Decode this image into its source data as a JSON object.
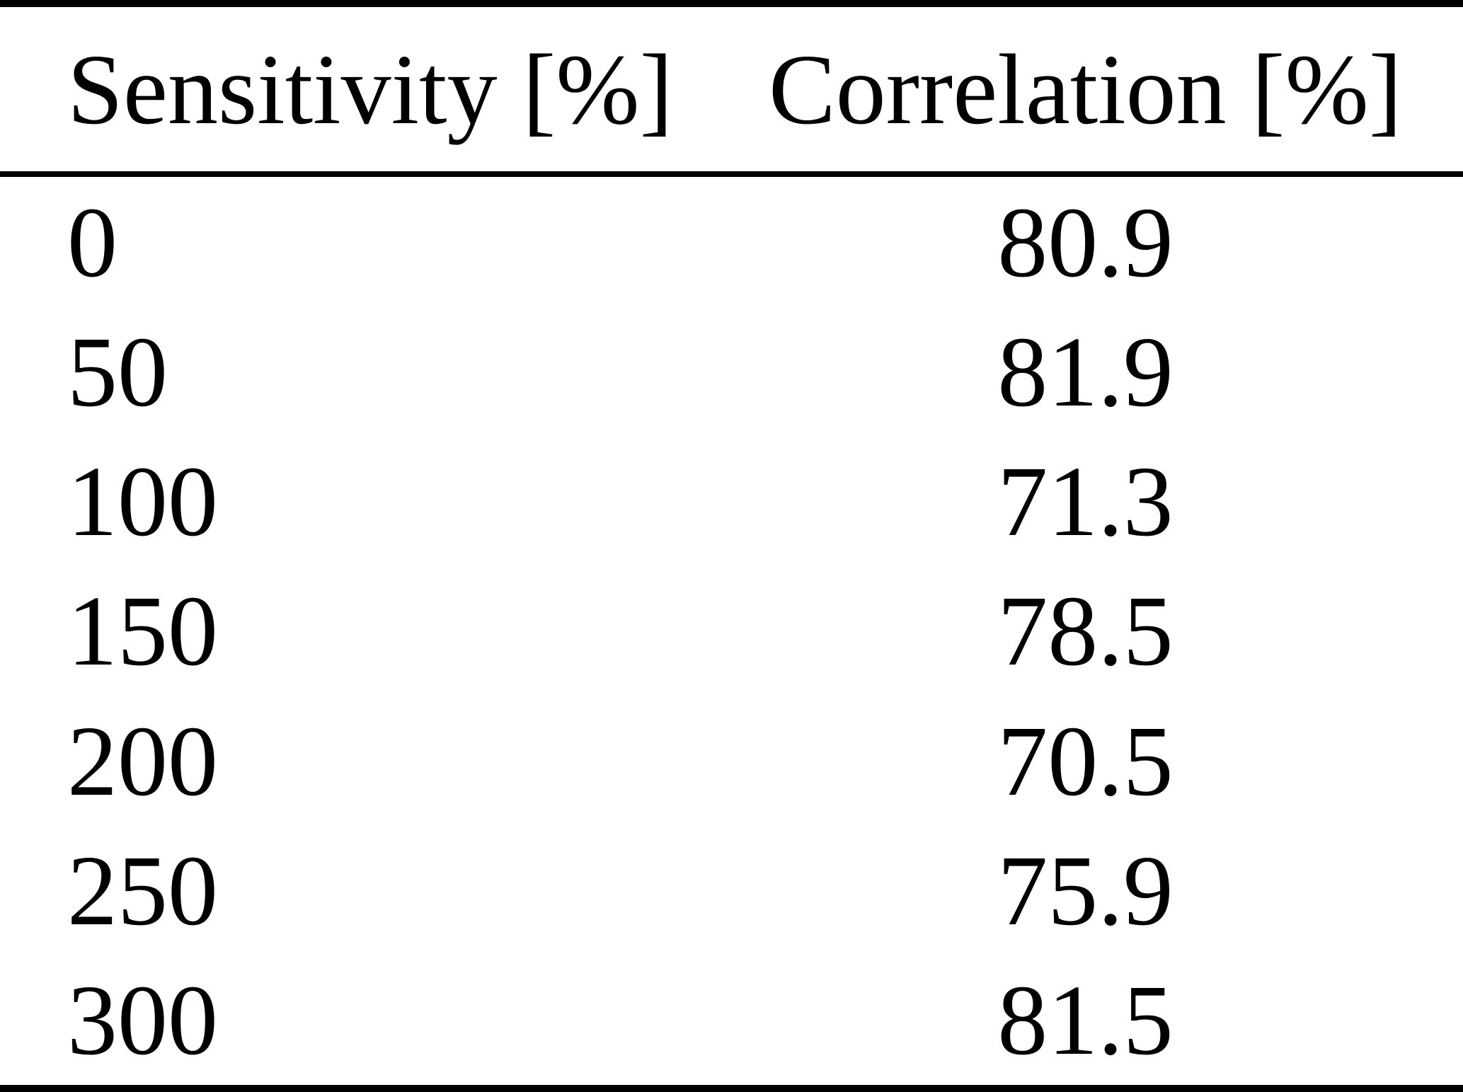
{
  "page": {
    "background_color": "#ffffff",
    "text_color": "#000000",
    "rule_color": "#000000"
  },
  "table": {
    "columns": [
      {
        "id": "sensitivity",
        "label": "Sensitivity [%]"
      },
      {
        "id": "correlation",
        "label": "Correlation [%]"
      }
    ],
    "rows": [
      {
        "sensitivity": "0",
        "correlation": "80.9"
      },
      {
        "sensitivity": "50",
        "correlation": "81.9"
      },
      {
        "sensitivity": "100",
        "correlation": "71.3"
      },
      {
        "sensitivity": "150",
        "correlation": "78.5"
      },
      {
        "sensitivity": "200",
        "correlation": "70.5"
      },
      {
        "sensitivity": "250",
        "correlation": "75.9"
      },
      {
        "sensitivity": "300",
        "correlation": "81.5"
      }
    ]
  },
  "chart_data": {
    "type": "table",
    "columns": [
      "Sensitivity [%]",
      "Correlation [%]"
    ],
    "sensitivity_values": [
      0,
      50,
      100,
      150,
      200,
      250,
      300
    ],
    "correlation_values": [
      80.9,
      81.9,
      71.3,
      78.5,
      70.5,
      75.9,
      81.5
    ]
  }
}
